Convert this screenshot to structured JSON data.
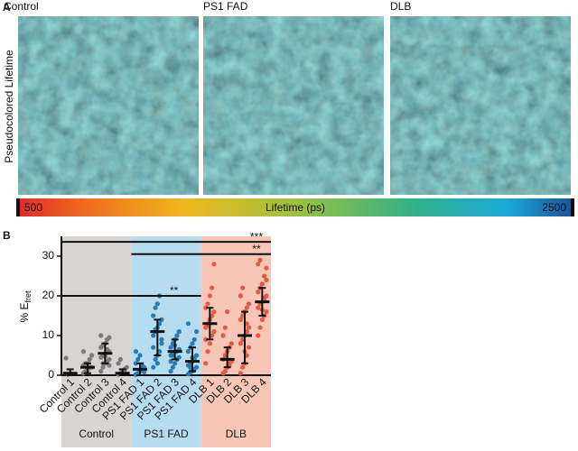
{
  "panel_a": {
    "label": "A",
    "side_label": "Pseudocolored Lifetime",
    "images": [
      {
        "title": "Control"
      },
      {
        "title": "PS1 FAD"
      },
      {
        "title": "DLB"
      }
    ],
    "colorbar": {
      "label": "Lifetime (ps)",
      "min": 500,
      "max": 2500
    }
  },
  "chart_data": {
    "type": "dotplot",
    "panel_label": "B",
    "y_label": "% E",
    "y_label_subscript": "fret",
    "ylim": [
      0,
      35
    ],
    "yticks": [
      0,
      10,
      20,
      30
    ],
    "series": [
      {
        "name": "Control",
        "color": "#7a7a7a",
        "band_color": "#d8d4d2",
        "categories": [
          "Control 1",
          "Control 2",
          "Control 3",
          "Control 4"
        ],
        "points": [
          [
            4.3,
            0.2,
            0.5
          ],
          [
            0.5,
            1,
            1.5,
            2,
            2,
            2.5,
            3,
            3,
            4,
            5,
            6,
            0.8,
            1.2
          ],
          [
            1,
            2,
            3,
            3.5,
            4,
            4.5,
            5,
            5.5,
            6,
            6,
            7,
            7.5,
            8,
            9,
            9.5,
            10,
            3,
            4.8,
            6.5,
            2.5
          ],
          [
            0.2,
            0.5,
            1,
            1.5,
            2,
            3,
            4,
            0.8,
            1.2
          ]
        ],
        "mean": [
          0.5,
          2,
          5.5,
          0.5
        ],
        "lower": [
          0,
          0.5,
          3,
          0
        ],
        "upper": [
          1.5,
          3,
          8,
          1.5
        ]
      },
      {
        "name": "PS1 FAD",
        "color": "#2b7bb0",
        "band_color": "#b6dcf0",
        "categories": [
          "PS1 FAD 1",
          "PS1 FAD 2",
          "PS1 FAD 3",
          "PS1 FAD 4"
        ],
        "points": [
          [
            0.2,
            0.5,
            1,
            1.5,
            2,
            3,
            4,
            5,
            2.5,
            0.8,
            6
          ],
          [
            2,
            4,
            5,
            6,
            8,
            10,
            11,
            12,
            13,
            14,
            15,
            17,
            18,
            20,
            9,
            7,
            11.5,
            3
          ],
          [
            1,
            2,
            3,
            4,
            4.5,
            5,
            5.5,
            6,
            6,
            6.5,
            7,
            8,
            9,
            10,
            11,
            3.5,
            5,
            7.5
          ],
          [
            0.3,
            0.8,
            1,
            1.5,
            2,
            2.5,
            3,
            3.5,
            4,
            5,
            6,
            7,
            8,
            9,
            11,
            13,
            2,
            4.5
          ]
        ],
        "mean": [
          1.5,
          11,
          6,
          3.5
        ],
        "lower": [
          0,
          5,
          4,
          1
        ],
        "upper": [
          3,
          14,
          9,
          7
        ]
      },
      {
        "name": "DLB",
        "color": "#e05a44",
        "band_color": "#f8c6b6",
        "categories": [
          "DLB 1",
          "DLB 2",
          "DLB 3",
          "DLB 4"
        ],
        "points": [
          [
            3,
            6,
            8,
            10,
            11,
            12,
            13,
            14,
            15,
            16,
            17,
            18,
            20,
            22,
            28,
            9,
            12.5
          ],
          [
            0.5,
            1,
            2,
            3,
            3.5,
            4,
            5,
            6,
            7,
            8,
            10,
            12,
            16,
            2.5
          ],
          [
            0.5,
            2,
            3,
            5,
            7,
            8,
            9,
            10,
            11,
            12,
            14,
            15,
            16,
            17,
            18,
            20,
            22,
            6,
            13
          ],
          [
            10,
            12,
            14,
            15,
            16,
            17,
            18,
            18.5,
            19,
            20,
            21,
            22,
            23,
            25,
            27,
            28,
            29,
            16.5,
            19.5,
            24
          ]
        ],
        "mean": [
          13,
          4,
          10,
          18.5
        ],
        "lower": [
          9,
          2,
          3,
          15
        ],
        "upper": [
          17,
          7,
          16,
          22
        ]
      }
    ],
    "annotations": [
      {
        "label": "***",
        "y": 33.6,
        "from": "Control 1",
        "to": "DLB 4"
      },
      {
        "label": "**",
        "y": 30.5,
        "from": "PS1 FAD 1",
        "to": "DLB 4"
      },
      {
        "label": "**",
        "y": 20,
        "from": "Control 1",
        "to": "PS1 FAD 4"
      }
    ]
  }
}
